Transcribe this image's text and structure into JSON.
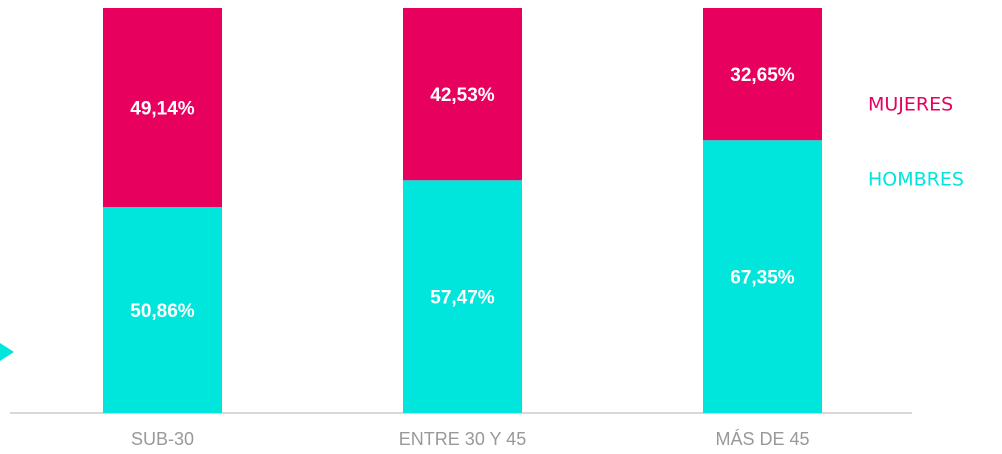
{
  "chart_data": {
    "type": "stacked-bar",
    "categories": [
      "SUB-30",
      "ENTRE 30 Y 45",
      "MÁS DE 45"
    ],
    "series": [
      {
        "name": "HOMBRES",
        "color": "#00e6dc",
        "values": [
          50.86,
          57.47,
          67.35
        ],
        "value_labels": [
          "50,86%",
          "57,47%",
          "67,35%"
        ]
      },
      {
        "name": "MUJERES",
        "color": "#e8005f",
        "values": [
          49.14,
          42.53,
          32.65
        ],
        "value_labels": [
          "49,14%",
          "42,53%",
          "32,65%"
        ]
      }
    ],
    "ylim": [
      0,
      100
    ],
    "legend": "right"
  }
}
